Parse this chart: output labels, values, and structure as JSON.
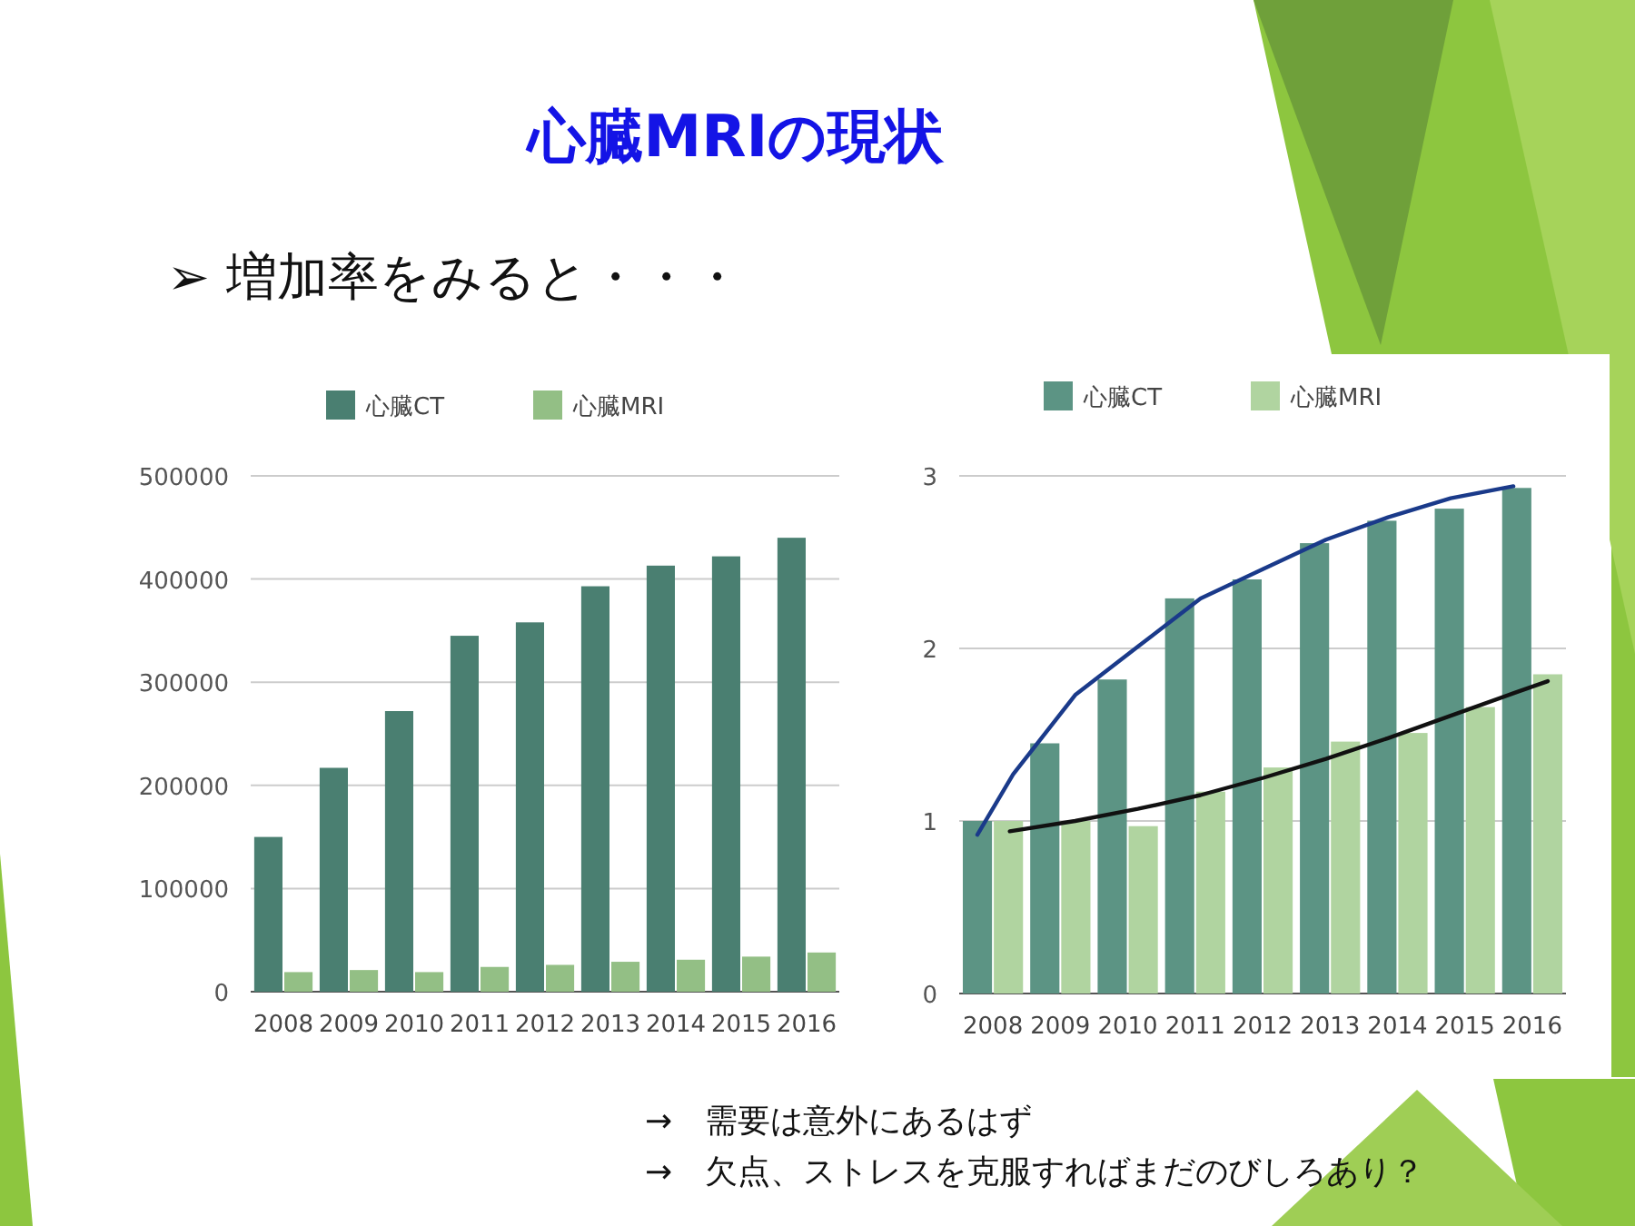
{
  "chart_data": [
    {
      "type": "bar",
      "title": "心臓MRIの現状",
      "subtitle": "➢ 増加率をみると・・・",
      "categories": [
        "2008",
        "2009",
        "2010",
        "2011",
        "2012",
        "2013",
        "2014",
        "2015",
        "2016"
      ],
      "series": [
        {
          "name": "心臓CT",
          "color": "#4a7f71",
          "values": [
            150000,
            217000,
            272000,
            345000,
            358000,
            393000,
            413000,
            422000,
            440000
          ]
        },
        {
          "name": "心臓MRI",
          "color": "#93bf85",
          "values": [
            19000,
            21000,
            19000,
            24000,
            26000,
            29000,
            31000,
            34000,
            38000
          ]
        }
      ],
      "ylim": [
        0,
        500000
      ],
      "yticks": [
        0,
        100000,
        200000,
        300000,
        400000,
        500000
      ],
      "grid": "y",
      "legend": "top"
    },
    {
      "type": "bar",
      "x": [
        2008,
        2009,
        2010,
        2011,
        2012,
        2013,
        2014,
        2015,
        2016
      ],
      "series": [
        {
          "name": "心臓CT",
          "color": "#5c9484",
          "values": [
            1.0,
            1.45,
            1.82,
            2.29,
            2.4,
            2.61,
            2.74,
            2.81,
            2.93
          ]
        },
        {
          "name": "心臓MRI",
          "color": "#b0d4a0",
          "values": [
            1.0,
            1.0,
            0.97,
            1.17,
            1.31,
            1.46,
            1.51,
            1.66,
            1.85
          ]
        },
        {
          "type": "line",
          "color": "#1a3a8a",
          "x": [
            2007.77,
            2008.3,
            2009.22,
            2010.15,
            2011.08,
            2012.01,
            2012.94,
            2013.86,
            2014.79,
            2015.72
          ],
          "values": [
            0.92,
            1.27,
            1.73,
            2.01,
            2.29,
            2.46,
            2.63,
            2.76,
            2.87,
            2.94
          ]
        },
        {
          "type": "line",
          "color": "#111111",
          "x": [
            2008.25,
            2009.22,
            2010.15,
            2011.08,
            2012.01,
            2012.94,
            2013.86,
            2014.79,
            2015.72,
            2016.23
          ],
          "values": [
            0.94,
            1.0,
            1.07,
            1.15,
            1.25,
            1.36,
            1.48,
            1.61,
            1.74,
            1.81
          ]
        }
      ],
      "xlim": [
        2007.5,
        2016.5
      ],
      "xticks": [
        2008,
        2009,
        2010,
        2011,
        2012,
        2013,
        2014,
        2015,
        2016
      ],
      "ylim": [
        0,
        3
      ],
      "yticks": [
        0,
        1,
        2,
        3
      ],
      "grid": "y",
      "legend": "top",
      "annotations": [
        "→　需要は意外にあるはず",
        "→　欠点、ストレスを克服すればまだのびしろあり？"
      ]
    }
  ]
}
